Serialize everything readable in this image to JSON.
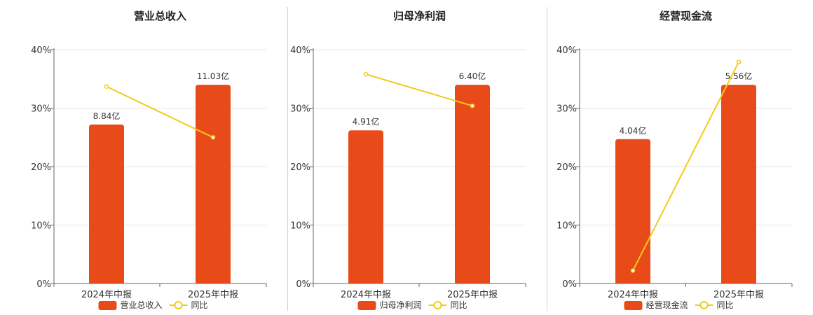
{
  "colors": {
    "bar": "#e84b19",
    "line": "#f0cc1a",
    "grid": "#e6e6e6",
    "axis": "#666666"
  },
  "chart_data": [
    {
      "type": "bar",
      "title": "营业总收入",
      "categories": [
        "2024年中报",
        "2025年中报"
      ],
      "ylim": [
        0,
        40
      ],
      "yticks": [
        "0%",
        "10%",
        "20%",
        "30%",
        "40%"
      ],
      "series": [
        {
          "name": "营业总收入",
          "type": "bar",
          "values": [
            27.2,
            34.0
          ],
          "labels": [
            "8.84亿",
            "11.03亿"
          ]
        },
        {
          "name": "同比",
          "type": "line",
          "values": [
            33.7,
            25.0
          ]
        }
      ],
      "legend": "bottom"
    },
    {
      "type": "bar",
      "title": "归母净利润",
      "categories": [
        "2024年中报",
        "2025年中报"
      ],
      "ylim": [
        0,
        40
      ],
      "yticks": [
        "0%",
        "10%",
        "20%",
        "30%",
        "40%"
      ],
      "series": [
        {
          "name": "归母净利润",
          "type": "bar",
          "values": [
            26.2,
            34.0
          ],
          "labels": [
            "4.91亿",
            "6.40亿"
          ]
        },
        {
          "name": "同比",
          "type": "line",
          "values": [
            35.8,
            30.4
          ]
        }
      ],
      "legend": "bottom"
    },
    {
      "type": "bar",
      "title": "经营现金流",
      "categories": [
        "2024年中报",
        "2025年中报"
      ],
      "ylim": [
        0,
        40
      ],
      "yticks": [
        "0%",
        "10%",
        "20%",
        "30%",
        "40%"
      ],
      "series": [
        {
          "name": "经营现金流",
          "type": "bar",
          "values": [
            24.7,
            34.0
          ],
          "labels": [
            "4.04亿",
            "5.56亿"
          ]
        },
        {
          "name": "同比",
          "type": "line",
          "values": [
            2.2,
            37.9
          ]
        }
      ],
      "legend": "bottom"
    }
  ]
}
